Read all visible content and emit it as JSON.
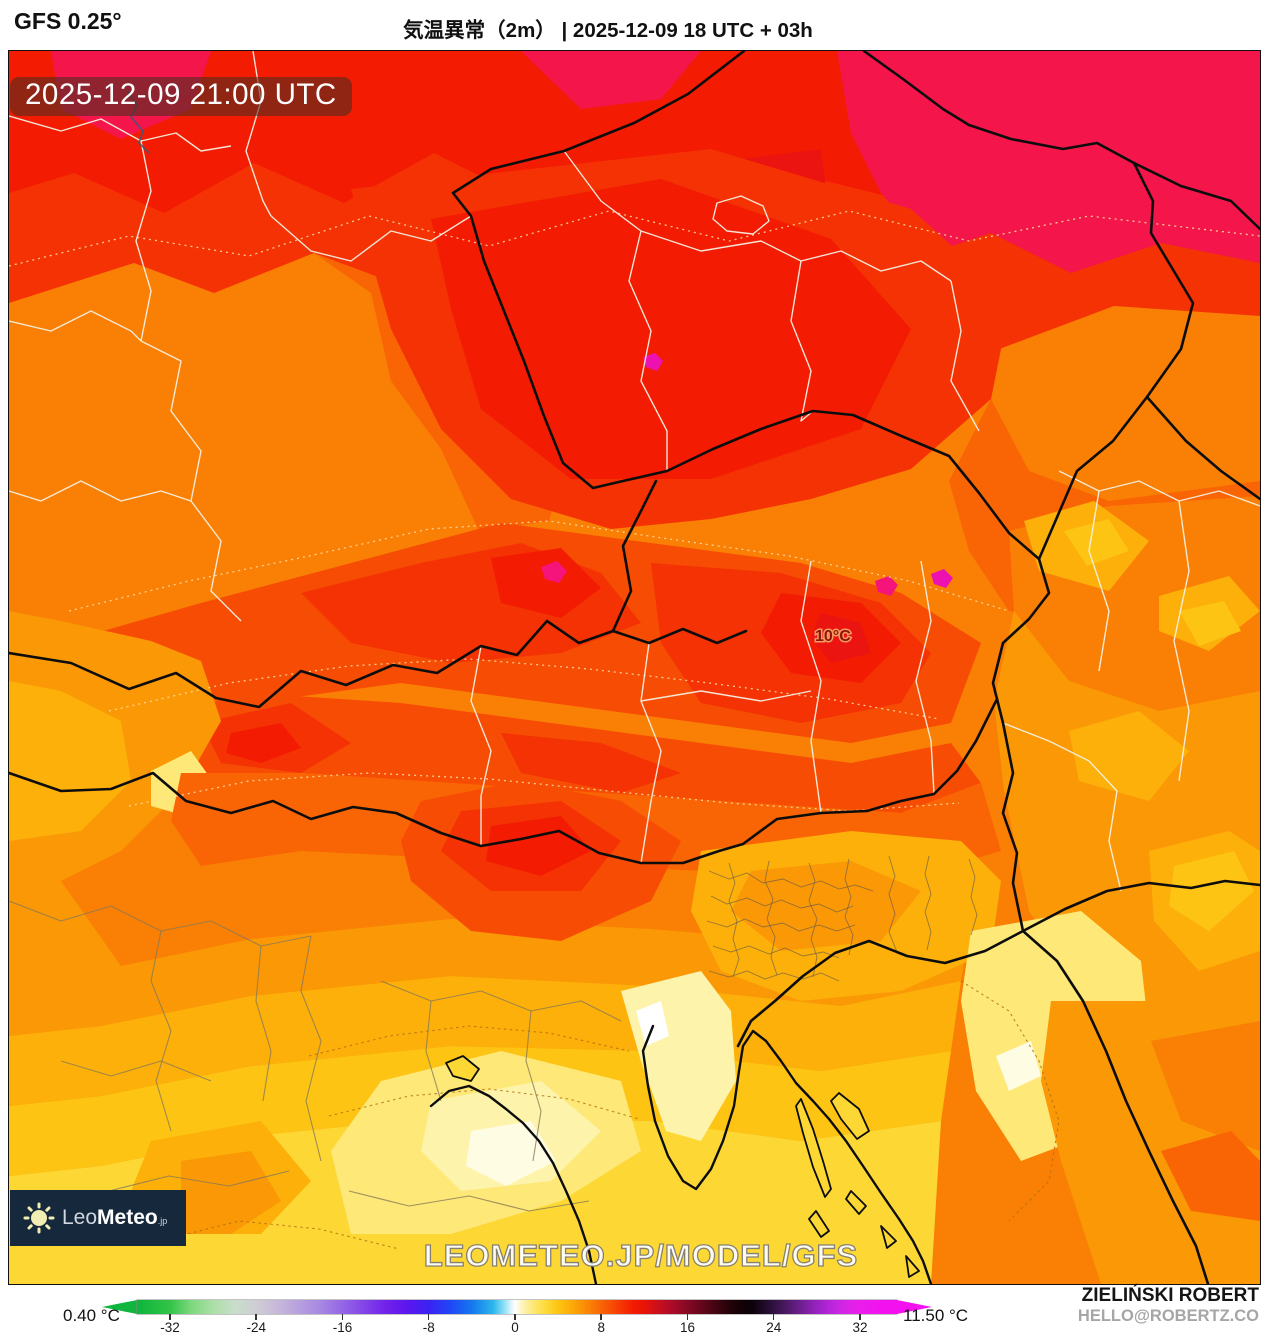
{
  "header": {
    "model": "GFS 0.25°",
    "title": "気温異常（2m） | 2025-12-09 18 UTC + 03h"
  },
  "map": {
    "timestamp": "2025-12-09 21:00 UTC",
    "contour_label": "10°C",
    "watermark": "LEOMETEO.JP/MODEL/GFS",
    "logo": {
      "leo": "Leo",
      "meteo": "Meteo",
      "tld": ".jp"
    }
  },
  "credit": {
    "name": "ZIELIŃSKI ROBERT",
    "email": "HELLO@ROBERTZ.CO"
  },
  "legend": {
    "min_label": "0.40 °C",
    "max_label": "11.50 °C",
    "unit": "°C",
    "ticks": [
      -32,
      -24,
      -16,
      -8,
      0,
      8,
      16,
      24,
      32
    ],
    "gradient": [
      [
        -35,
        "#0fb53c"
      ],
      [
        -32,
        "#31c447"
      ],
      [
        -30,
        "#7ed87e"
      ],
      [
        -28,
        "#abdfa6"
      ],
      [
        -26,
        "#c9decb"
      ],
      [
        -24,
        "#cecdd4"
      ],
      [
        -22,
        "#c7b8da"
      ],
      [
        -20,
        "#b79fdf"
      ],
      [
        -18,
        "#a687e2"
      ],
      [
        -16,
        "#9566e5"
      ],
      [
        -14,
        "#8344e8"
      ],
      [
        -12,
        "#7122ea"
      ],
      [
        -10,
        "#5b16ee"
      ],
      [
        -8,
        "#3b22f2"
      ],
      [
        -6,
        "#2046f5"
      ],
      [
        -4,
        "#1478ee"
      ],
      [
        -2,
        "#2eb6ec"
      ],
      [
        -1,
        "#8fe0f7"
      ],
      [
        -0.4,
        "#d8f3fc"
      ],
      [
        0,
        "#ffffff"
      ],
      [
        0.4,
        "#fdf8d8"
      ],
      [
        1,
        "#fdf0a0"
      ],
      [
        2,
        "#fde463"
      ],
      [
        3,
        "#fdd733"
      ],
      [
        4,
        "#fdc413"
      ],
      [
        5,
        "#fcb009"
      ],
      [
        6,
        "#fb9806"
      ],
      [
        7,
        "#fa7f05"
      ],
      [
        8,
        "#f96505"
      ],
      [
        9,
        "#f74c04"
      ],
      [
        10,
        "#f53203"
      ],
      [
        11,
        "#f31b02"
      ],
      [
        12,
        "#e81408"
      ],
      [
        13,
        "#d11018"
      ],
      [
        14,
        "#b90d24"
      ],
      [
        15,
        "#a00b28"
      ],
      [
        16,
        "#860924"
      ],
      [
        17,
        "#6c071e"
      ],
      [
        18,
        "#520517"
      ],
      [
        19,
        "#39040f"
      ],
      [
        20,
        "#220208"
      ],
      [
        21,
        "#120105"
      ],
      [
        22,
        "#0c010b"
      ],
      [
        23,
        "#1d0a26"
      ],
      [
        24,
        "#311241"
      ],
      [
        25,
        "#48185e"
      ],
      [
        26,
        "#611e7e"
      ],
      [
        27,
        "#7c20a0"
      ],
      [
        28,
        "#9722c2"
      ],
      [
        29,
        "#b125d6"
      ],
      [
        30,
        "#c827e2"
      ],
      [
        31,
        "#dc23e8"
      ],
      [
        32,
        "#ea1dec"
      ],
      [
        34,
        "#f312ef"
      ]
    ]
  },
  "palette": {
    "white": "#ffffff",
    "t0": "#fffce4",
    "t1": "#fdf3ab",
    "t2": "#fde878",
    "t3": "#fdd835",
    "t4": "#fdc413",
    "t5": "#fcb009",
    "t6": "#fb9806",
    "t7": "#fa7f05",
    "t8": "#f96505",
    "t9": "#f74c04",
    "t10": "#f53203",
    "t11": "#f31b02",
    "t12": "#ec1410",
    "t13": "#f4164a",
    "pink": "#f5137c",
    "magenta": "#ec11b0",
    "border_country": "#0d0d0d",
    "border_region": "#f3efdf",
    "border_province": "#8a7a55",
    "border_muni": "#5f574a",
    "contour_light": "#ffd9a0",
    "contour_dark": "#b06a10",
    "logo_bg": "#16293c",
    "stamp_bg": "#52362c",
    "credit_gray": "#a6a6a6"
  }
}
